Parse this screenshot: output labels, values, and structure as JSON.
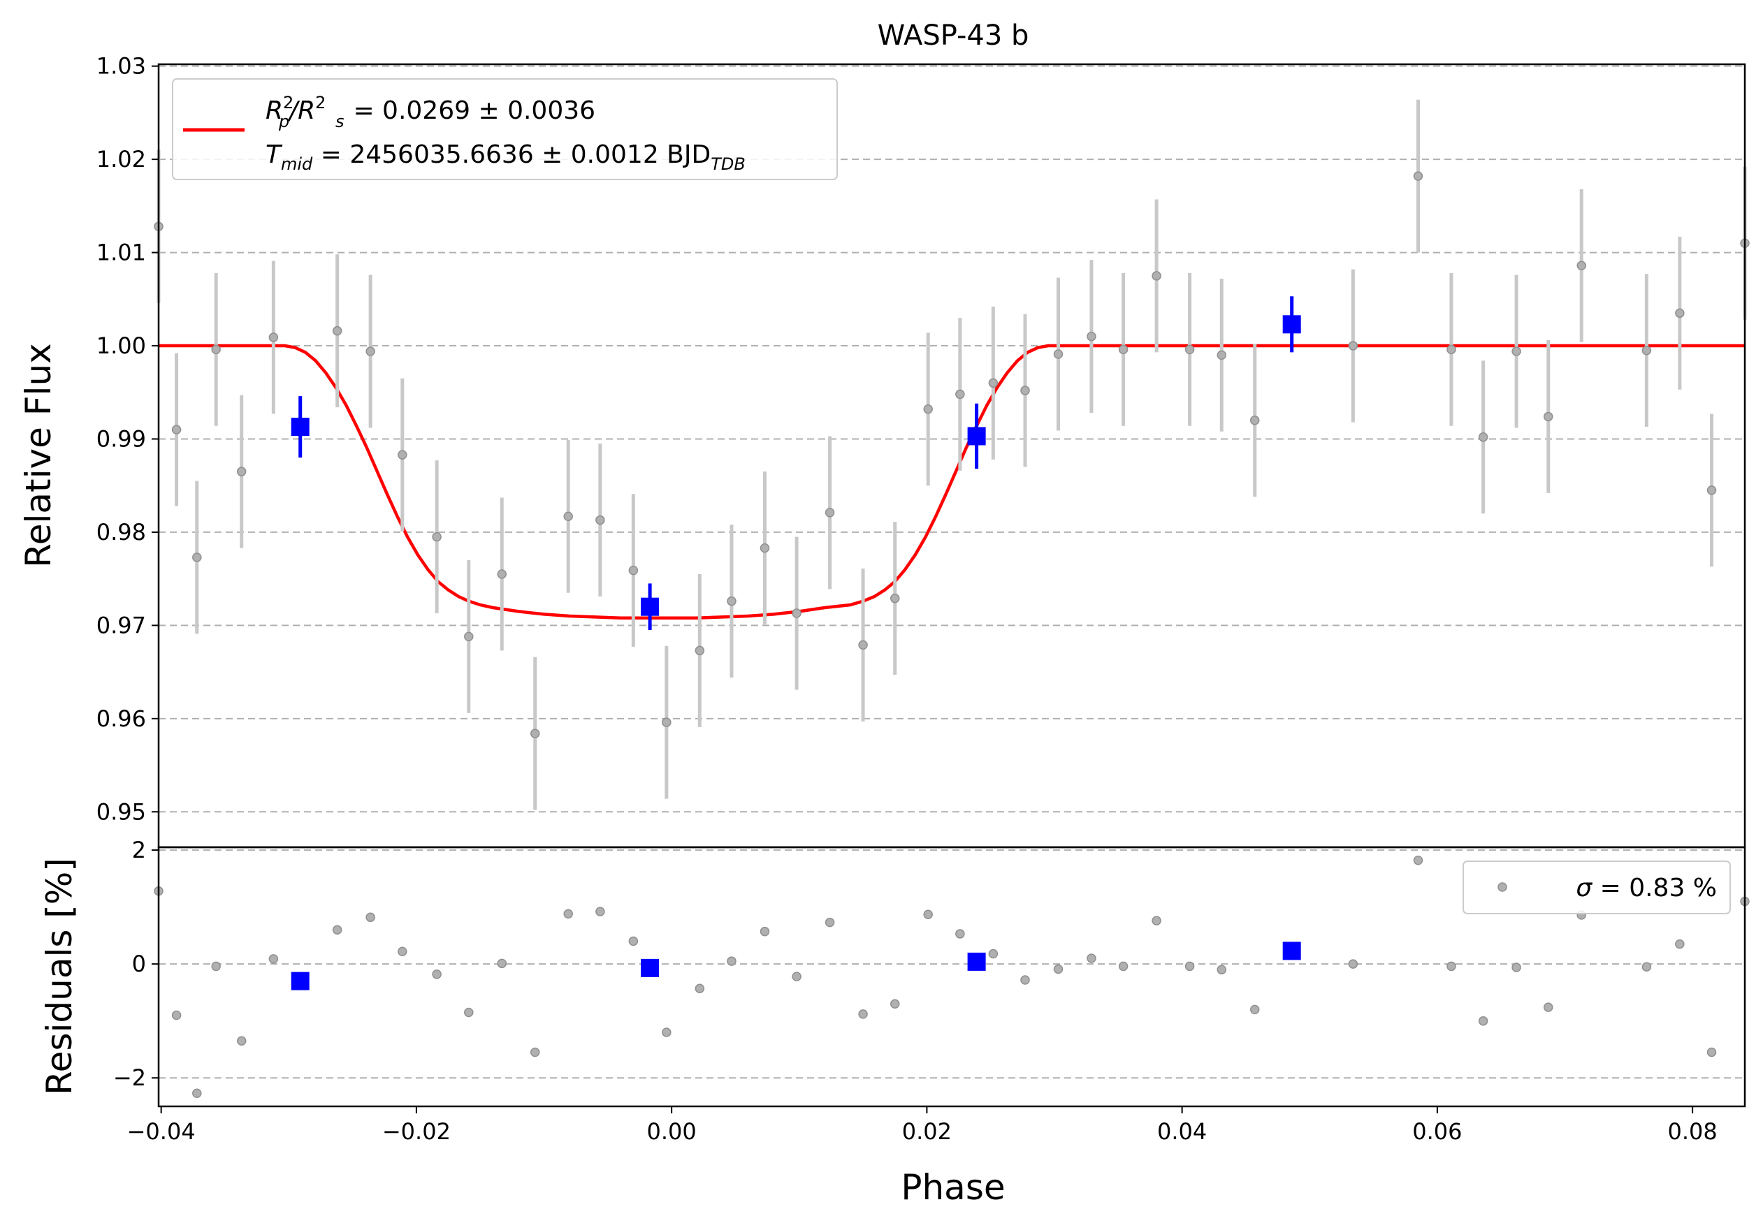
{
  "chart_data": [
    {
      "type": "scatter",
      "title": "WASP-43 b",
      "ylabel": "Relative Flux",
      "xlim": [
        -0.0402,
        0.0841
      ],
      "ylim": [
        0.9462,
        1.0302
      ],
      "grid": "y-dashed",
      "legend_placement": "top-left",
      "yticks": [
        "0.95",
        "0.96",
        "0.97",
        "0.98",
        "0.99",
        "1.00",
        "1.01",
        "1.02",
        "1.03"
      ],
      "legend": {
        "line1": {
          "main": "R",
          "sub_p": "p",
          "sup1": "2",
          "slash": "/R",
          "sub_s": "s",
          "sup2": "2",
          "rest": " = 0.0269 ± 0.0036"
        },
        "line2": {
          "main": "T",
          "sub_mid": "mid",
          "rest": " = 2456035.6636 ± 0.0012 BJD",
          "sub_tdb": "TDB"
        }
      },
      "series": [
        {
          "kind": "points",
          "color": "#808080",
          "x": [
            -0.0402,
            -0.0388,
            -0.0372,
            -0.0357,
            -0.0337,
            -0.0312,
            -0.0262,
            -0.0236,
            -0.0211,
            -0.0184,
            -0.0159,
            -0.0133,
            -0.0107,
            -0.0081,
            -0.0056,
            -0.003,
            -0.0004,
            0.0022,
            0.0047,
            0.0073,
            0.0098,
            0.0124,
            0.015,
            0.0175,
            0.0201,
            0.0226,
            0.0252,
            0.0277,
            0.0303,
            0.0329,
            0.0354,
            0.038,
            0.0406,
            0.0431,
            0.0457,
            0.0534,
            0.0585,
            0.0611,
            0.0636,
            0.0662,
            0.0687,
            0.0713,
            0.0764,
            0.079,
            0.0815,
            0.0841
          ],
          "y": [
            1.0128,
            0.991,
            0.9773,
            0.9996,
            0.9865,
            1.0009,
            1.0016,
            0.9994,
            0.9883,
            0.9795,
            0.9688,
            0.9755,
            0.9584,
            0.9817,
            0.9813,
            0.9759,
            0.9596,
            0.9673,
            0.9726,
            0.9783,
            0.9713,
            0.9821,
            0.9679,
            0.9729,
            0.9932,
            0.9948,
            0.996,
            0.9952,
            0.9991,
            1.001,
            0.9996,
            1.0075,
            0.9996,
            0.999,
            0.992,
            1.0,
            1.0182,
            0.9996,
            0.9902,
            0.9994,
            0.9924,
            1.0086,
            0.9995,
            1.0035,
            0.9845,
            1.011
          ],
          "yerr": 0.0082
        },
        {
          "kind": "binned",
          "color": "#0000ff",
          "x": [
            -0.0291,
            -0.0017,
            0.0239,
            0.0486
          ],
          "y": [
            0.9913,
            0.972,
            0.9903,
            1.0023
          ],
          "yerr": [
            0.0033,
            0.0025,
            0.0035,
            0.003
          ]
        },
        {
          "kind": "model",
          "color": "#ff0000",
          "x": [
            -0.0402,
            -0.0303,
            -0.0295,
            -0.0287,
            -0.0279,
            -0.0271,
            -0.0263,
            -0.0255,
            -0.0247,
            -0.0239,
            -0.0231,
            -0.0223,
            -0.0215,
            -0.0207,
            -0.0199,
            -0.0191,
            -0.0183,
            -0.0175,
            -0.0167,
            -0.0159,
            -0.015,
            -0.014,
            -0.012,
            -0.01,
            -0.008,
            -0.006,
            -0.004,
            -0.002,
            0.0,
            0.002,
            0.004,
            0.006,
            0.008,
            0.01,
            0.012,
            0.014,
            0.015,
            0.0159,
            0.0167,
            0.0175,
            0.0183,
            0.0191,
            0.0199,
            0.0207,
            0.0215,
            0.0223,
            0.0231,
            0.0239,
            0.0247,
            0.0255,
            0.0263,
            0.0271,
            0.0279,
            0.0287,
            0.0295,
            0.0303,
            0.0841
          ],
          "y": [
            1.0,
            1.0,
            0.9998,
            0.9993,
            0.9984,
            0.9971,
            0.9955,
            0.9936,
            0.9914,
            0.9891,
            0.9866,
            0.9841,
            0.9817,
            0.9795,
            0.9776,
            0.976,
            0.9747,
            0.9738,
            0.9731,
            0.9726,
            0.9722,
            0.9719,
            0.9715,
            0.9712,
            0.971,
            0.9709,
            0.9708,
            0.9708,
            0.9708,
            0.9708,
            0.9709,
            0.971,
            0.9712,
            0.9715,
            0.9719,
            0.9722,
            0.9726,
            0.9731,
            0.9738,
            0.9747,
            0.976,
            0.9776,
            0.9795,
            0.9817,
            0.9841,
            0.9866,
            0.9891,
            0.9914,
            0.9936,
            0.9955,
            0.9971,
            0.9984,
            0.9993,
            0.9998,
            1.0,
            1.0,
            1.0
          ]
        }
      ]
    },
    {
      "type": "scatter",
      "xlabel": "Phase",
      "ylabel": "Residuals [%]",
      "xlim": [
        -0.0402,
        0.0841
      ],
      "ylim": [
        -2.5,
        2.05
      ],
      "grid": "y-dashed",
      "legend_placement": "top-right",
      "xticks": [
        "−0.04",
        "−0.02",
        "0.00",
        "0.02",
        "0.04",
        "0.06",
        "0.08"
      ],
      "yticks": [
        "−2",
        "0",
        "2"
      ],
      "legend": {
        "sigma_symbol": "σ",
        "sigma_rest": " = 0.83 %"
      },
      "series": [
        {
          "kind": "points",
          "color": "#808080",
          "x": [
            -0.0402,
            -0.0388,
            -0.0372,
            -0.0357,
            -0.0337,
            -0.0312,
            -0.0262,
            -0.0236,
            -0.0211,
            -0.0184,
            -0.0159,
            -0.0133,
            -0.0107,
            -0.0081,
            -0.0056,
            -0.003,
            -0.0004,
            0.0022,
            0.0047,
            0.0073,
            0.0098,
            0.0124,
            0.015,
            0.0175,
            0.0201,
            0.0226,
            0.0252,
            0.0277,
            0.0303,
            0.0329,
            0.0354,
            0.038,
            0.0406,
            0.0431,
            0.0457,
            0.0534,
            0.0585,
            0.0611,
            0.0636,
            0.0662,
            0.0687,
            0.0713,
            0.0764,
            0.079,
            0.0815,
            0.0841
          ],
          "y": [
            1.28,
            -0.9,
            -2.27,
            -0.04,
            -1.35,
            0.09,
            0.6,
            0.82,
            0.22,
            -0.18,
            -0.85,
            0.01,
            -1.55,
            0.88,
            0.92,
            0.4,
            -1.2,
            -0.43,
            0.05,
            0.57,
            -0.22,
            0.73,
            -0.88,
            -0.7,
            0.87,
            0.53,
            0.18,
            -0.28,
            -0.09,
            0.1,
            -0.04,
            0.76,
            -0.04,
            -0.1,
            -0.8,
            0.0,
            1.82,
            -0.04,
            -1.0,
            -0.06,
            -0.76,
            0.86,
            -0.05,
            0.35,
            -1.55,
            1.1
          ]
        },
        {
          "kind": "binned",
          "color": "#0000ff",
          "x": [
            -0.0291,
            -0.0017,
            0.0239,
            0.0486
          ],
          "y": [
            -0.3,
            -0.07,
            0.04,
            0.23
          ]
        }
      ]
    }
  ]
}
